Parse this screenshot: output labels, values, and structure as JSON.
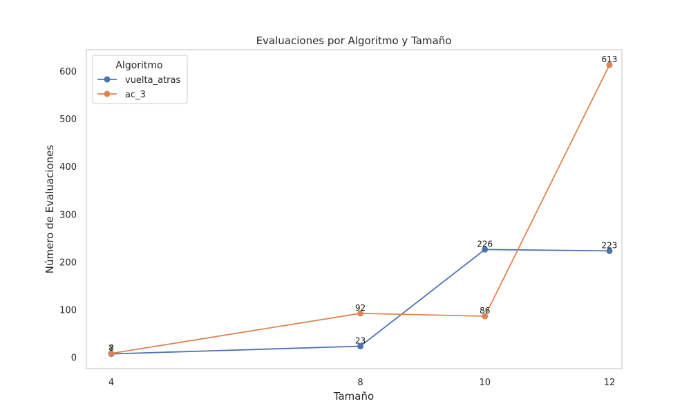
{
  "chart_data": {
    "type": "line",
    "title": "Evaluaciones por Algoritmo y Tamaño",
    "xlabel": "Tamaño",
    "ylabel": "Número de Evaluaciones",
    "x": [
      4,
      8,
      10,
      12
    ],
    "x_ticks": [
      4,
      8,
      10,
      12
    ],
    "y_ticks": [
      0,
      100,
      200,
      300,
      400,
      500,
      600
    ],
    "xlim": [
      3.6,
      12.2
    ],
    "ylim": [
      -24,
      645
    ],
    "grid": false,
    "legend": {
      "title": "Algoritmo",
      "position": "top-left"
    },
    "series": [
      {
        "name": "vuelta_atras",
        "color": "#4c72b0",
        "values": [
          7,
          23,
          226,
          223
        ]
      },
      {
        "name": "ac_3",
        "color": "#dd8452",
        "values": [
          8,
          92,
          86,
          613
        ]
      }
    ]
  }
}
